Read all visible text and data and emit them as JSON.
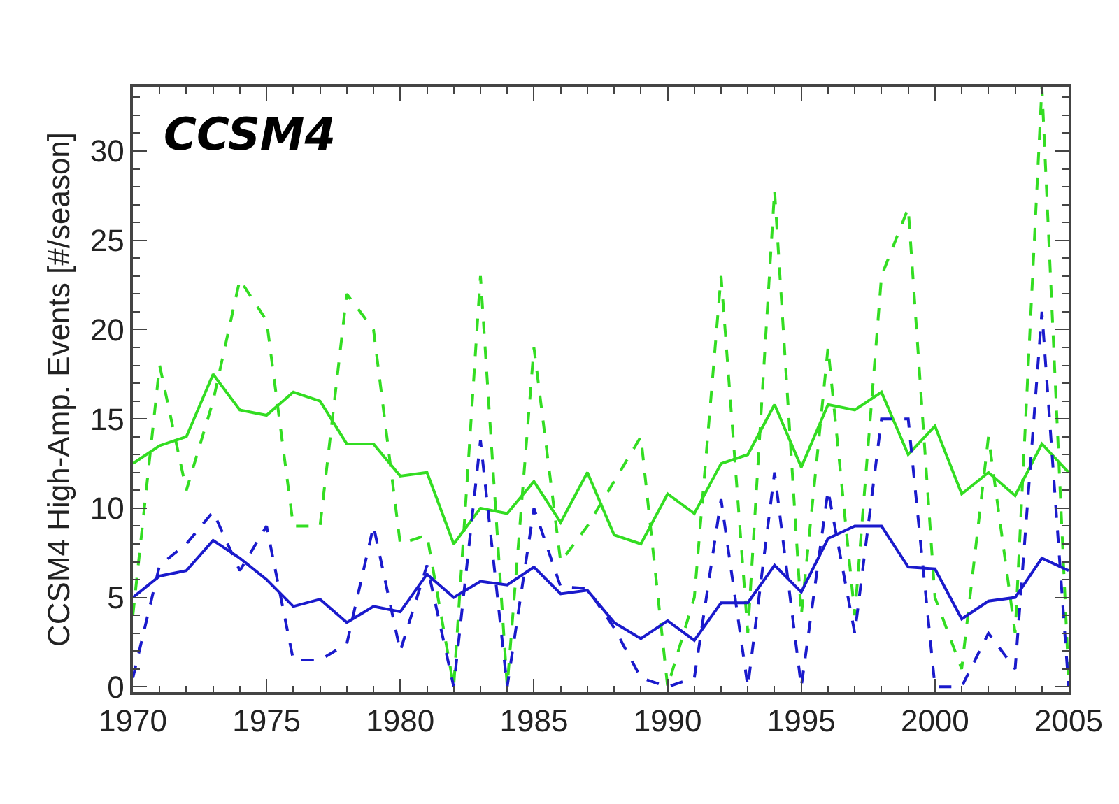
{
  "chart_data": {
    "type": "line",
    "ylabel": "CCSM4 High-Amp. Events [#/season]",
    "annotations": [
      "CCSM4"
    ],
    "x": [
      1970,
      1971,
      1972,
      1973,
      1974,
      1975,
      1976,
      1977,
      1978,
      1979,
      1980,
      1981,
      1982,
      1983,
      1984,
      1985,
      1986,
      1987,
      1988,
      1989,
      1990,
      1991,
      1992,
      1993,
      1994,
      1995,
      1996,
      1997,
      1998,
      1999,
      2000,
      2001,
      2002,
      2003,
      2004,
      2005
    ],
    "series": [
      {
        "color": "#33dd22",
        "line_style": "solid",
        "values": [
          12.5,
          13.5,
          14,
          17.5,
          15.5,
          15.2,
          16.5,
          16,
          13.6,
          13.6,
          11.8,
          12,
          8,
          10,
          9.7,
          11.5,
          9.2,
          12,
          8.5,
          8,
          10.8,
          9.7,
          12.5,
          13,
          15.8,
          12.3,
          15.8,
          15.5,
          16.5,
          13,
          14.6,
          10.8,
          12,
          10.7,
          13.6,
          12
        ]
      },
      {
        "color": "#33dd22",
        "line_style": "dashed",
        "values": [
          4,
          18,
          11,
          16,
          22.8,
          20.5,
          9,
          9,
          22,
          20,
          8,
          8.5,
          0,
          23,
          0,
          19,
          7,
          9,
          11.5,
          14,
          0,
          5,
          23,
          3,
          27.8,
          4,
          19,
          4,
          23,
          26.8,
          5,
          1,
          14,
          3,
          33.6,
          0.5
        ]
      },
      {
        "color": "#1a1acc",
        "line_style": "solid",
        "values": [
          5,
          6.2,
          6.5,
          8.2,
          7.2,
          6,
          4.5,
          4.9,
          3.6,
          4.5,
          4.2,
          6.3,
          5,
          5.9,
          5.7,
          6.7,
          5.2,
          5.4,
          3.6,
          2.7,
          3.7,
          2.6,
          4.7,
          4.7,
          6.8,
          5.3,
          8.3,
          9,
          9,
          6.7,
          6.6,
          3.8,
          4.8,
          5,
          7.2,
          6.5
        ]
      },
      {
        "color": "#1a1acc",
        "line_style": "dashed",
        "values": [
          0.5,
          6.8,
          8,
          9.8,
          6.5,
          9,
          1.5,
          1.5,
          2.4,
          9,
          2,
          6.8,
          0,
          13.8,
          0,
          10,
          5.6,
          5.5,
          3.3,
          0.5,
          0,
          0.5,
          10.5,
          0,
          12,
          0,
          11,
          3,
          15,
          15,
          0,
          0,
          3,
          1,
          21,
          0
        ]
      }
    ],
    "xlim": [
      1970,
      2005
    ],
    "xticks": [
      1970,
      1975,
      1980,
      1985,
      1990,
      1995,
      2000,
      2005
    ],
    "ylim": [
      -0.3,
      33.6
    ],
    "yticks": [
      0,
      5,
      10,
      15,
      20,
      25,
      30
    ],
    "marker": "none"
  }
}
